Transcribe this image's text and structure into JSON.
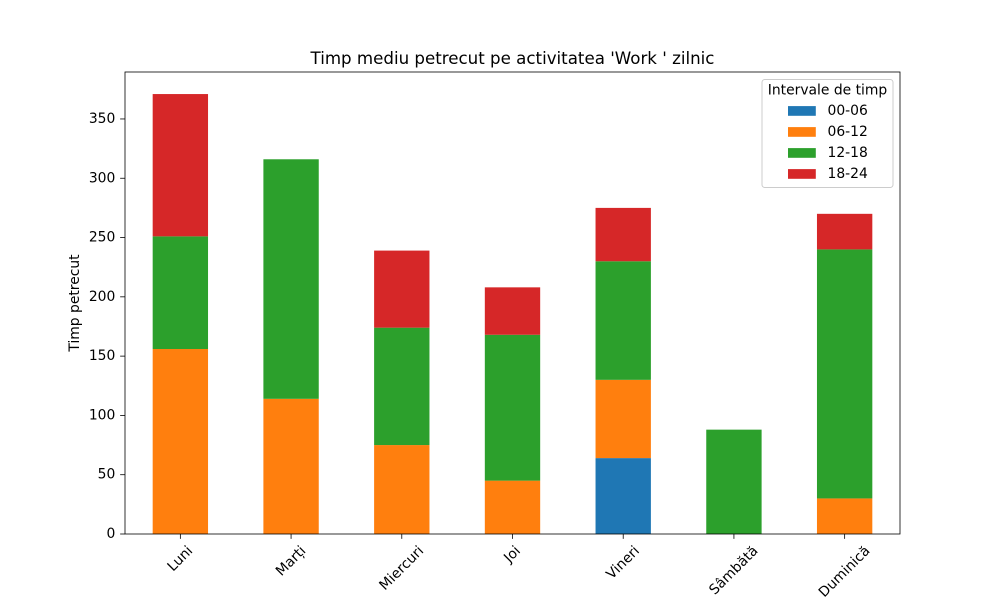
{
  "chart_data": {
    "type": "bar",
    "stacked": true,
    "title": "Timp mediu petrecut pe activitatea 'Work ' zilnic",
    "ylabel": "Timp petrecut",
    "categories": [
      "Luni",
      "Marți",
      "Miercuri",
      "Joi",
      "Vineri",
      "Sâmbătă",
      "Duminică"
    ],
    "series": [
      {
        "name": "00-06",
        "color": "#1f77b4",
        "values": [
          0,
          0,
          0,
          0,
          64,
          0,
          0
        ]
      },
      {
        "name": "06-12",
        "color": "#ff7f0e",
        "values": [
          156,
          114,
          75,
          45,
          66,
          0,
          30
        ]
      },
      {
        "name": "12-18",
        "color": "#2ca02c",
        "values": [
          95,
          202,
          99,
          123,
          100,
          88,
          210
        ]
      },
      {
        "name": "18-24",
        "color": "#d62728",
        "values": [
          120,
          0,
          65,
          40,
          45,
          0,
          30
        ]
      }
    ],
    "ylim": [
      0,
      389.6
    ],
    "yticks": [
      0,
      50,
      100,
      150,
      200,
      250,
      300,
      350
    ],
    "legend": {
      "title": "Intervale de timp",
      "position": "upper right"
    },
    "grid": false
  }
}
